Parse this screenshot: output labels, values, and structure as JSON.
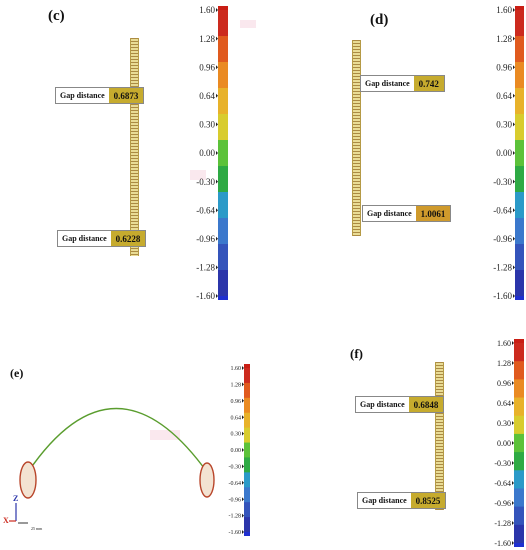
{
  "panels": {
    "c": {
      "label": "(c)"
    },
    "d": {
      "label": "(d)"
    },
    "e": {
      "label": "(e)"
    },
    "f": {
      "label": "(f)"
    }
  },
  "gap_text": "Gap distance",
  "gap_values": {
    "c_top": "0.6873",
    "c_bottom": "0.6228",
    "d_top": "0.742",
    "d_bottom": "1.0061",
    "f_top": "0.6848",
    "f_bottom": "0.8525"
  },
  "colorbar_ticks": [
    "1.60",
    "1.28",
    "0.96",
    "0.64",
    "0.30",
    "0.00",
    "-0.30",
    "-0.64",
    "-0.96",
    "-1.28",
    "-1.60"
  ],
  "axes": {
    "z": "Z",
    "x": "X"
  },
  "scale_text": "25 mm",
  "colors": {
    "scale": [
      "#cc2a1e",
      "#e05a1e",
      "#ea8a22",
      "#e8b22a",
      "#d8cc2e",
      "#5cc23a",
      "#2eaa44",
      "#2b9ac8",
      "#3b78cc",
      "#3454bb",
      "#2b35aa"
    ],
    "ruler": "#e9dc95",
    "gap_value_bg": "#c6ab2e",
    "arc": "#5a9d2e",
    "ellipse": "#b8452a"
  }
}
